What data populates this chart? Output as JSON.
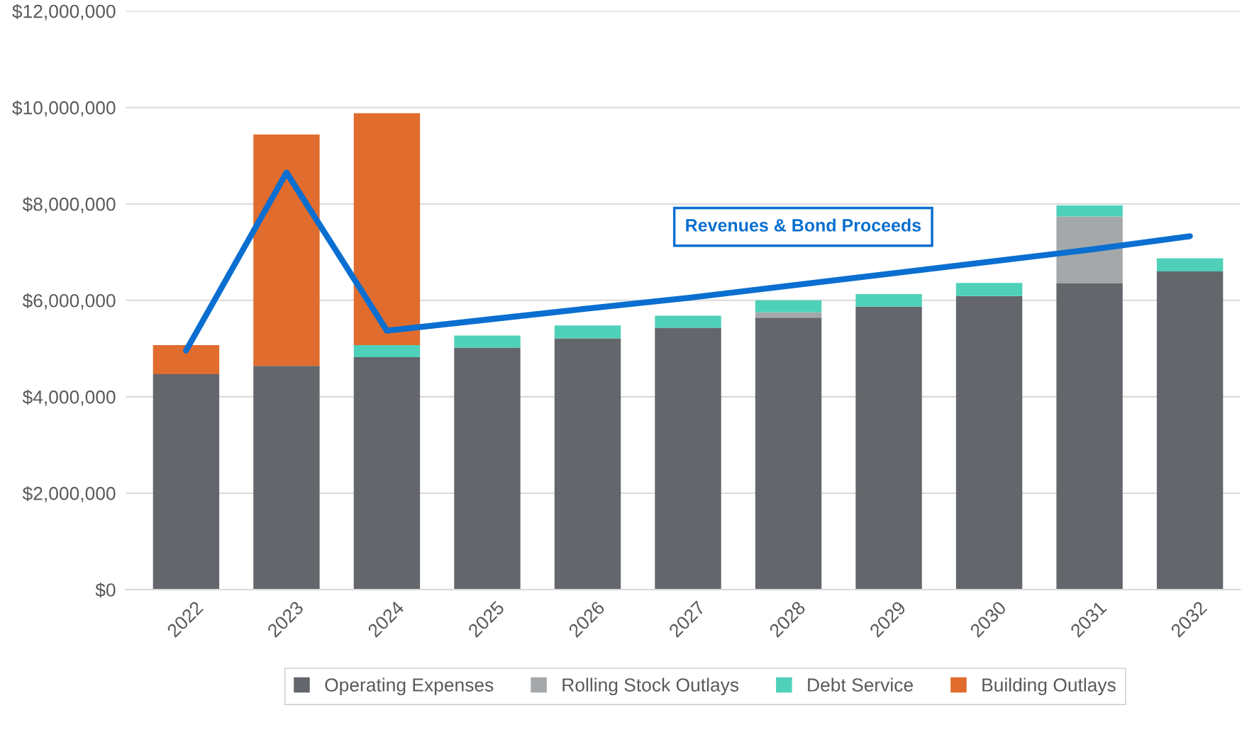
{
  "chart_data": {
    "type": "bar",
    "stacked": true,
    "categories": [
      "2022",
      "2023",
      "2024",
      "2025",
      "2026",
      "2027",
      "2028",
      "2029",
      "2030",
      "2031",
      "2032"
    ],
    "series": [
      {
        "name": "Operating Expenses",
        "color": "#63666a",
        "values": [
          4470000,
          4640000,
          4820000,
          5020000,
          5210000,
          5430000,
          5640000,
          5870000,
          6090000,
          6350000,
          6600000
        ]
      },
      {
        "name": "Rolling Stock Outlays",
        "color": "#a5a8aa",
        "values": [
          null,
          null,
          null,
          null,
          null,
          null,
          110000,
          null,
          null,
          1390000,
          null
        ]
      },
      {
        "name": "Debt Service",
        "color": "#4fd1b9",
        "values": [
          null,
          null,
          250000,
          250000,
          270000,
          250000,
          250000,
          260000,
          270000,
          230000,
          270000
        ]
      },
      {
        "name": "Building Outlays",
        "color": "#e06c2d",
        "values": [
          600000,
          4800000,
          4810000,
          null,
          null,
          null,
          null,
          null,
          null,
          null,
          null
        ]
      },
      {
        "name": "Revenues & Bond Proceeds",
        "type": "line",
        "color": "#0a6fd0",
        "values": [
          4960000,
          8650000,
          5370000,
          5600000,
          5830000,
          6050000,
          6300000,
          6550000,
          6800000,
          7050000,
          7330000
        ]
      }
    ],
    "ylim": [
      0,
      12000000
    ],
    "yticks": [
      {
        "value": 0,
        "label": "$0"
      },
      {
        "value": 2000000,
        "label": "$2,000,000"
      },
      {
        "value": 4000000,
        "label": "$4,000,000"
      },
      {
        "value": 6000000,
        "label": "$6,000,000"
      },
      {
        "value": 8000000,
        "label": "$8,000,000"
      },
      {
        "value": 10000000,
        "label": "$10,000,000"
      },
      {
        "value": 12000000,
        "label": "$12,000,000"
      }
    ],
    "grid": "y",
    "legend": "bottom"
  }
}
